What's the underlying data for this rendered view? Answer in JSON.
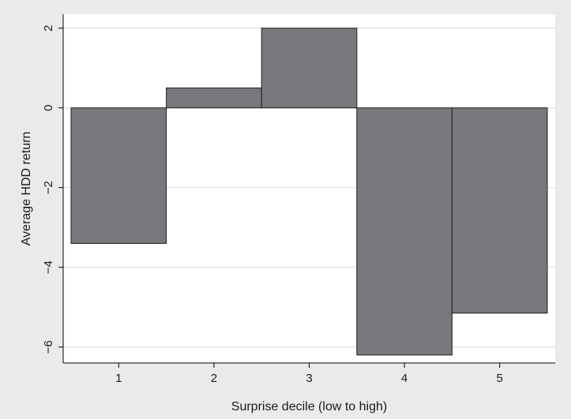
{
  "chart_data": {
    "type": "bar",
    "categories": [
      "1",
      "2",
      "3",
      "4",
      "5"
    ],
    "values": [
      -3.4,
      0.5,
      2.0,
      -6.2,
      -5.15
    ],
    "xlabel": "Surprise decile (low to high)",
    "ylabel": "Average HDD return",
    "ylim": [
      -6.4,
      2.35
    ],
    "yticks": [
      2,
      0,
      -2,
      -4,
      -6
    ],
    "ytick_labels": [
      "2",
      "0",
      "−2",
      "−4",
      "−6"
    ],
    "grid": true,
    "colors": {
      "bar_fill": "#77787b",
      "bar_stroke": "#1f1f1f",
      "plot_background": "#ffffff",
      "outer_background": "#eaeaea",
      "grid": "#d9d9d9"
    }
  }
}
